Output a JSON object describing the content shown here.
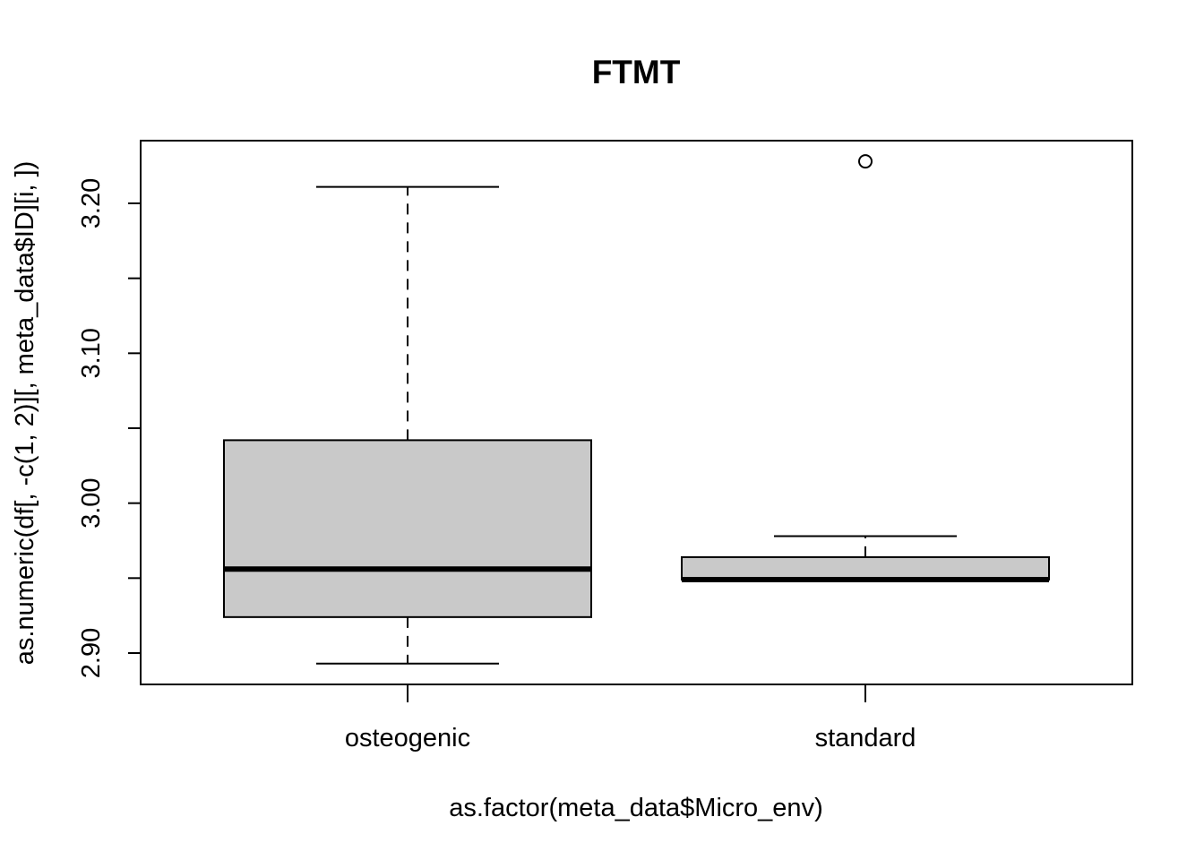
{
  "chart_data": {
    "type": "boxplot",
    "title": "FTMT",
    "xlabel": "as.factor(meta_data$Micro_env)",
    "ylabel": "as.numeric(df[, -c(1, 2)][, meta_data$ID][i, ])",
    "ylim": [
      2.88,
      3.241
    ],
    "yticks": [
      2.9,
      2.95,
      3.0,
      3.05,
      3.1,
      3.15,
      3.2
    ],
    "ytick_labels": [
      "2.90",
      "",
      "3.00",
      "",
      "3.10",
      "",
      "3.20"
    ],
    "categories": [
      "osteogenic",
      "standard"
    ],
    "boxes": [
      {
        "name": "osteogenic",
        "whisker_low": 2.893,
        "q1": 2.924,
        "median": 2.956,
        "q3": 3.042,
        "whisker_high": 3.211,
        "outliers": []
      },
      {
        "name": "standard",
        "whisker_low": 2.949,
        "q1": 2.949,
        "median": 2.949,
        "q3": 2.964,
        "whisker_high": 2.978,
        "outliers": [
          3.228
        ]
      }
    ],
    "box_fill": "#c9c9c9",
    "grid": false,
    "legend": "none"
  }
}
